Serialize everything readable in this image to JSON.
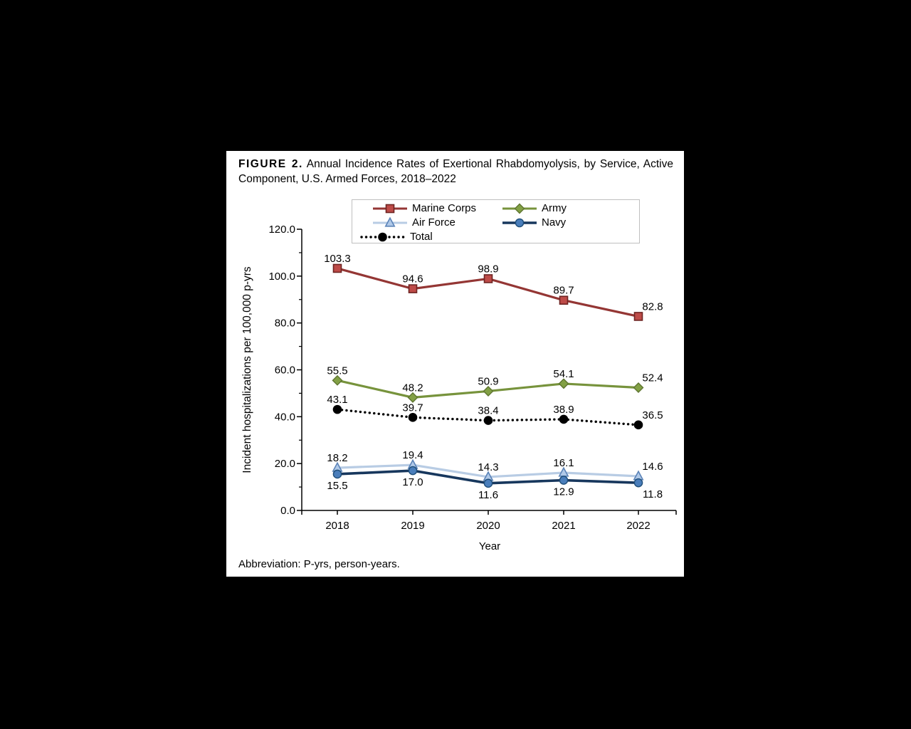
{
  "figure": {
    "label": "FIGURE 2.",
    "title_rest": " Annual Incidence Rates of Exertional Rhabdomyolysis, by Service, Active Component, U.S. Armed Forces, 2018–2022",
    "footnote": "Abbreviation: P-yrs, person-years."
  },
  "chart_data": {
    "type": "line",
    "title": "Annual Incidence Rates of Exertional Rhabdomyolysis, by Service, Active Component, U.S. Armed Forces, 2018–2022",
    "categories": [
      "2018",
      "2019",
      "2020",
      "2021",
      "2022"
    ],
    "series": [
      {
        "name": "Marine Corps",
        "values": [
          103.3,
          94.6,
          98.9,
          89.7,
          82.8
        ],
        "labels": [
          "103.3",
          "94.6",
          "98.9",
          "89.7",
          "82.8"
        ],
        "color": "#943634",
        "marker": "square",
        "marker_fill": "#BE4B48",
        "marker_stroke": "#6E2422",
        "line_style": "solid",
        "label_position": "above"
      },
      {
        "name": "Army",
        "values": [
          55.5,
          48.2,
          50.9,
          54.1,
          52.4
        ],
        "labels": [
          "55.5",
          "48.2",
          "50.9",
          "54.1",
          "52.4"
        ],
        "color": "#77933C",
        "marker": "diamond",
        "marker_fill": "#82A045",
        "marker_stroke": "#5E7530",
        "line_style": "solid",
        "label_position": "above"
      },
      {
        "name": "Total",
        "values": [
          43.1,
          39.7,
          38.4,
          38.9,
          36.5
        ],
        "labels": [
          "43.1",
          "39.7",
          "38.4",
          "38.9",
          "36.5"
        ],
        "color": "#000000",
        "marker": "circle",
        "marker_fill": "#000000",
        "marker_stroke": "#000000",
        "line_style": "dotted",
        "label_position": "above"
      },
      {
        "name": "Air Force",
        "values": [
          18.2,
          19.4,
          14.3,
          16.1,
          14.6
        ],
        "labels": [
          "18.2",
          "19.4",
          "14.3",
          "16.1",
          "14.6"
        ],
        "color": "#B8CCE4",
        "marker": "triangle",
        "marker_fill": "#B0C9E8",
        "marker_stroke": "#5B83B8",
        "line_style": "solid",
        "label_position": "above"
      },
      {
        "name": "Navy",
        "values": [
          15.5,
          17.0,
          11.6,
          12.9,
          11.8
        ],
        "labels": [
          "15.5",
          "17.0",
          "11.6",
          "12.9",
          "11.8"
        ],
        "color": "#17375D",
        "marker": "circle",
        "marker_fill": "#4A7EBB",
        "marker_stroke": "#1F4E79",
        "line_style": "solid",
        "label_position": "below"
      }
    ],
    "xlabel": "Year",
    "ylabel": "Incident hospitalizations per 100,000 p-yrs",
    "ylim": [
      0,
      120
    ],
    "ytick_step": 20,
    "ytick_labels": [
      "0.0",
      "20.0",
      "40.0",
      "60.0",
      "80.0",
      "100.0",
      "120.0"
    ],
    "grid": false,
    "legend_position": "top-center"
  },
  "legend": {
    "entries": [
      {
        "label": "Marine Corps"
      },
      {
        "label": "Army"
      },
      {
        "label": "Air Force"
      },
      {
        "label": "Navy"
      },
      {
        "label": "Total"
      }
    ]
  }
}
